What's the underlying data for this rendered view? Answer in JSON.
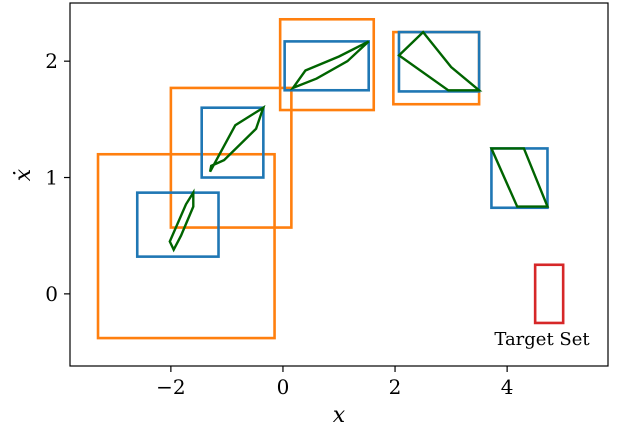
{
  "chart_data": {
    "type": "scatter",
    "title": "",
    "xlabel": "x",
    "ylabel": "ẋ",
    "xlim": [
      -3.8,
      5.8
    ],
    "ylim": [
      -0.62,
      2.5
    ],
    "xticks": [
      {
        "value": -2,
        "label": "−2"
      },
      {
        "value": 0,
        "label": "0"
      },
      {
        "value": 2,
        "label": "2"
      },
      {
        "value": 4,
        "label": "4"
      }
    ],
    "yticks": [
      {
        "value": 0,
        "label": "0"
      },
      {
        "value": 1,
        "label": "1"
      },
      {
        "value": 2,
        "label": "2"
      }
    ],
    "grid": false,
    "colors": {
      "outer_box": "#ff7f0e",
      "inner_box": "#1f77b4",
      "reach_set": "#006400",
      "target": "#d62728"
    },
    "orange_boxes": [
      {
        "x0": -3.3,
        "x1": -0.15,
        "y0": -0.38,
        "y1": 1.2
      },
      {
        "x0": -2.0,
        "x1": 0.15,
        "y0": 0.57,
        "y1": 1.77
      },
      {
        "x0": -0.05,
        "x1": 1.62,
        "y0": 1.58,
        "y1": 2.36
      },
      {
        "x0": 1.97,
        "x1": 3.5,
        "y0": 1.63,
        "y1": 2.25
      }
    ],
    "blue_boxes": [
      {
        "x0": -2.6,
        "x1": -1.15,
        "y0": 0.32,
        "y1": 0.87
      },
      {
        "x0": -1.45,
        "x1": -0.35,
        "y0": 1.0,
        "y1": 1.6
      },
      {
        "x0": 0.03,
        "x1": 1.53,
        "y0": 1.75,
        "y1": 2.17
      },
      {
        "x0": 2.07,
        "x1": 3.5,
        "y0": 1.74,
        "y1": 2.25
      },
      {
        "x0": 3.72,
        "x1": 4.72,
        "y0": 0.74,
        "y1": 1.25
      }
    ],
    "polygons": [
      [
        [
          -2.02,
          0.45
        ],
        [
          -1.73,
          0.77
        ],
        [
          -1.6,
          0.87
        ],
        [
          -1.6,
          0.75
        ],
        [
          -1.82,
          0.5
        ],
        [
          -1.95,
          0.38
        ]
      ],
      [
        [
          -1.3,
          1.05
        ],
        [
          -0.85,
          1.45
        ],
        [
          -0.35,
          1.6
        ],
        [
          -0.48,
          1.42
        ],
        [
          -1.05,
          1.15
        ],
        [
          -1.28,
          1.1
        ]
      ],
      [
        [
          0.18,
          1.77
        ],
        [
          0.4,
          1.92
        ],
        [
          1.0,
          2.04
        ],
        [
          1.53,
          2.17
        ],
        [
          1.15,
          2.0
        ],
        [
          0.6,
          1.85
        ]
      ],
      [
        [
          2.07,
          2.05
        ],
        [
          2.5,
          2.25
        ],
        [
          3.0,
          1.95
        ],
        [
          3.5,
          1.75
        ],
        [
          2.95,
          1.75
        ]
      ],
      [
        [
          3.72,
          1.25
        ],
        [
          4.3,
          1.25
        ],
        [
          4.72,
          0.75
        ],
        [
          4.18,
          0.75
        ]
      ]
    ],
    "target_set": {
      "x0": 4.5,
      "x1": 5.0,
      "y0": -0.25,
      "y1": 0.25
    },
    "annotations": [
      "Target Set"
    ]
  }
}
